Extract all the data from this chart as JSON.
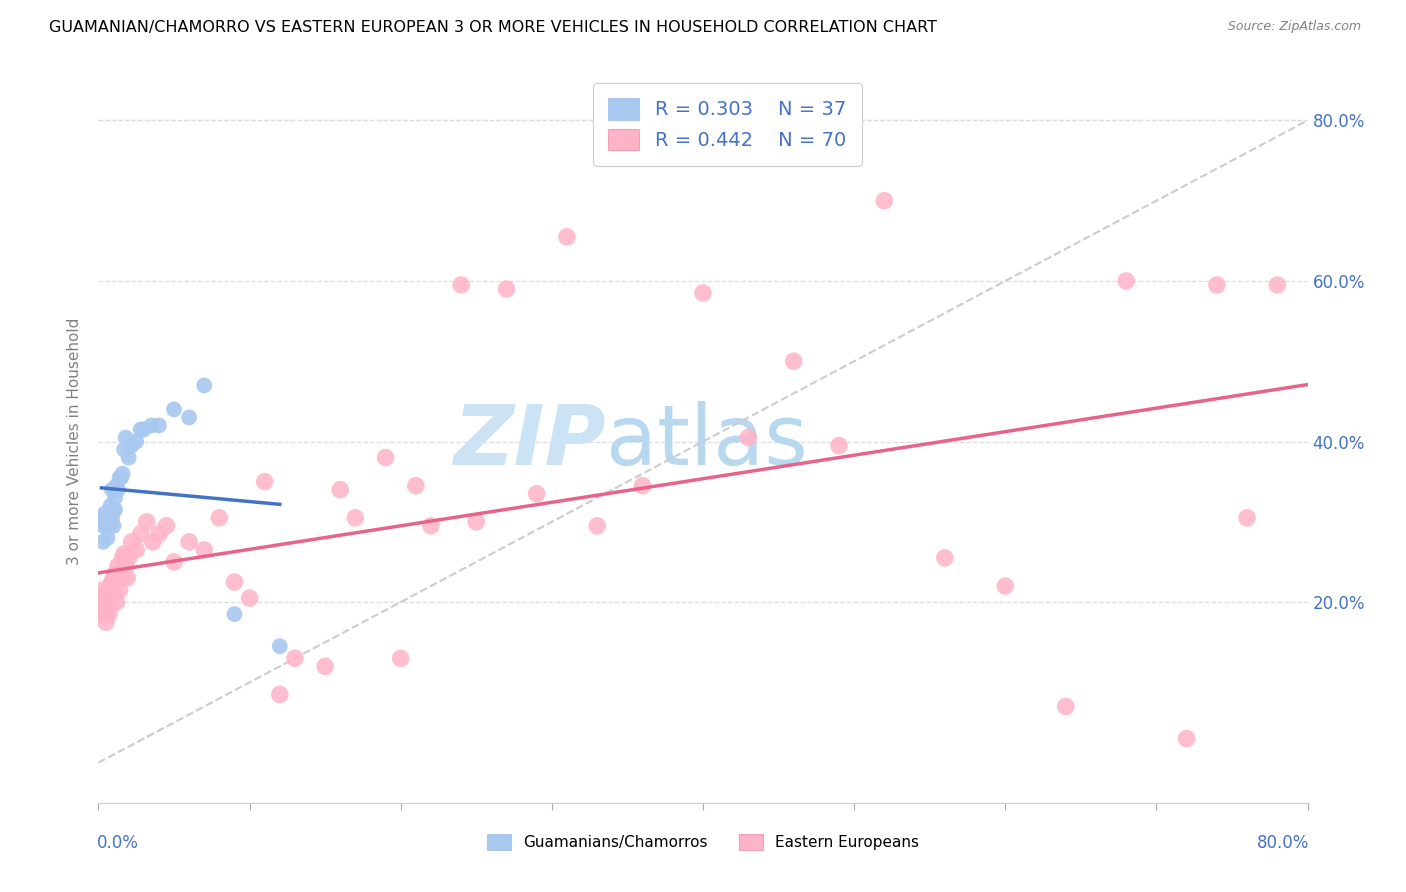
{
  "title": "GUAMANIAN/CHAMORRO VS EASTERN EUROPEAN 3 OR MORE VEHICLES IN HOUSEHOLD CORRELATION CHART",
  "source": "Source: ZipAtlas.com",
  "ylabel": "3 or more Vehicles in Household",
  "xmin": 0.0,
  "xmax": 0.8,
  "ymin": -0.05,
  "ymax": 0.85,
  "right_ytick_vals": [
    0.2,
    0.4,
    0.6,
    0.8
  ],
  "right_ytick_labels": [
    "20.0%",
    "40.0%",
    "60.0%",
    "80.0%"
  ],
  "legend_label_blue": "Guamanians/Chamorros",
  "legend_label_pink": "Eastern Europeans",
  "blue_color": "#a8c8f0",
  "blue_line_color": "#4472C4",
  "pink_color": "#ffb3c6",
  "pink_line_color": "#e8638a",
  "axis_label_color": "#4472C4",
  "grid_color": "#dddddd",
  "blue_R": "0.303",
  "blue_N": "37",
  "pink_R": "0.442",
  "pink_N": "70",
  "blue_x": [
    0.002,
    0.003,
    0.003,
    0.004,
    0.004,
    0.005,
    0.006,
    0.006,
    0.007,
    0.007,
    0.008,
    0.008,
    0.009,
    0.009,
    0.01,
    0.01,
    0.011,
    0.011,
    0.012,
    0.013,
    0.014,
    0.015,
    0.016,
    0.017,
    0.018,
    0.02,
    0.022,
    0.025,
    0.028,
    0.03,
    0.035,
    0.04,
    0.05,
    0.06,
    0.07,
    0.09,
    0.12
  ],
  "blue_y": [
    0.305,
    0.295,
    0.275,
    0.3,
    0.31,
    0.295,
    0.295,
    0.28,
    0.295,
    0.305,
    0.295,
    0.32,
    0.305,
    0.34,
    0.295,
    0.315,
    0.315,
    0.33,
    0.345,
    0.34,
    0.355,
    0.355,
    0.36,
    0.39,
    0.405,
    0.38,
    0.395,
    0.4,
    0.415,
    0.415,
    0.42,
    0.42,
    0.44,
    0.43,
    0.47,
    0.185,
    0.145
  ],
  "pink_x": [
    0.001,
    0.002,
    0.003,
    0.003,
    0.004,
    0.004,
    0.005,
    0.005,
    0.006,
    0.007,
    0.007,
    0.008,
    0.008,
    0.009,
    0.009,
    0.01,
    0.01,
    0.011,
    0.012,
    0.013,
    0.014,
    0.015,
    0.016,
    0.017,
    0.018,
    0.019,
    0.02,
    0.022,
    0.025,
    0.028,
    0.032,
    0.036,
    0.04,
    0.045,
    0.05,
    0.06,
    0.07,
    0.08,
    0.09,
    0.1,
    0.11,
    0.12,
    0.13,
    0.15,
    0.16,
    0.17,
    0.19,
    0.2,
    0.21,
    0.22,
    0.24,
    0.25,
    0.27,
    0.29,
    0.31,
    0.33,
    0.36,
    0.4,
    0.43,
    0.46,
    0.49,
    0.52,
    0.56,
    0.6,
    0.64,
    0.68,
    0.72,
    0.74,
    0.76,
    0.78
  ],
  "pink_y": [
    0.185,
    0.205,
    0.19,
    0.215,
    0.21,
    0.185,
    0.195,
    0.175,
    0.21,
    0.195,
    0.185,
    0.21,
    0.22,
    0.215,
    0.225,
    0.215,
    0.23,
    0.235,
    0.2,
    0.245,
    0.215,
    0.23,
    0.255,
    0.26,
    0.245,
    0.23,
    0.255,
    0.275,
    0.265,
    0.285,
    0.3,
    0.275,
    0.285,
    0.295,
    0.25,
    0.275,
    0.265,
    0.305,
    0.225,
    0.205,
    0.35,
    0.085,
    0.13,
    0.12,
    0.34,
    0.305,
    0.38,
    0.13,
    0.345,
    0.295,
    0.595,
    0.3,
    0.59,
    0.335,
    0.655,
    0.295,
    0.345,
    0.585,
    0.405,
    0.5,
    0.395,
    0.7,
    0.255,
    0.22,
    0.07,
    0.6,
    0.03,
    0.595,
    0.305,
    0.595
  ]
}
